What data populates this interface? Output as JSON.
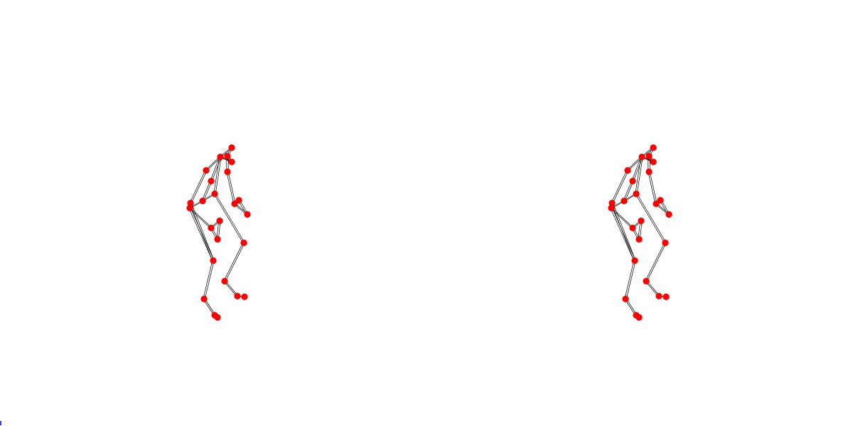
{
  "colors": {
    "background": "#ffffff",
    "joint": "#ff0000",
    "joint_edge": "#d00000",
    "bone": "#000000",
    "corner_marker": "#2a3cff"
  },
  "figures": [
    {
      "name": "pose-left"
    },
    {
      "name": "pose-right"
    }
  ]
}
